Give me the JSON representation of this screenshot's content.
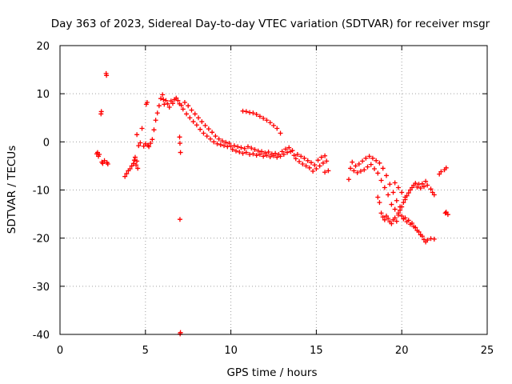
{
  "chart_data": {
    "type": "scatter",
    "title": "Day 363 of 2023, Sidereal Day-to-day VTEC variation (SDTVAR) for receiver msgr",
    "xlabel": "GPS time / hours",
    "ylabel": "SDTVAR / TECUs",
    "xlim": [
      0,
      25
    ],
    "ylim": [
      -40,
      20
    ],
    "xticks": [
      0,
      5,
      10,
      15,
      20,
      25
    ],
    "yticks": [
      -40,
      -30,
      -20,
      -10,
      0,
      10,
      20
    ],
    "grid": true,
    "marker": "+",
    "marker_color": "#ff0000",
    "series": [
      {
        "name": "SDTVAR",
        "points": [
          [
            2.15,
            -2.5
          ],
          [
            2.2,
            -2.2
          ],
          [
            2.25,
            -3.0
          ],
          [
            2.3,
            -2.6
          ],
          [
            2.4,
            5.8
          ],
          [
            2.42,
            6.3
          ],
          [
            2.45,
            -4.2
          ],
          [
            2.5,
            -4.5
          ],
          [
            2.6,
            -3.9
          ],
          [
            2.7,
            14.2
          ],
          [
            2.72,
            13.8
          ],
          [
            2.75,
            -4.3
          ],
          [
            2.8,
            -4.6
          ],
          [
            3.8,
            -7.2
          ],
          [
            3.9,
            -6.6
          ],
          [
            4.0,
            -6.0
          ],
          [
            4.1,
            -5.6
          ],
          [
            4.2,
            -5.0
          ],
          [
            4.3,
            -4.5
          ],
          [
            4.35,
            -3.8
          ],
          [
            4.4,
            -3.2
          ],
          [
            4.45,
            -4.8
          ],
          [
            4.5,
            -4.0
          ],
          [
            4.55,
            -5.5
          ],
          [
            4.5,
            1.5
          ],
          [
            4.6,
            -0.8
          ],
          [
            4.7,
            -0.2
          ],
          [
            4.8,
            2.8
          ],
          [
            4.9,
            -0.9
          ],
          [
            5.0,
            -0.4
          ],
          [
            5.05,
            7.8
          ],
          [
            5.1,
            8.2
          ],
          [
            5.15,
            -0.7
          ],
          [
            5.2,
            -1.0
          ],
          [
            5.3,
            -0.3
          ],
          [
            5.4,
            0.5
          ],
          [
            5.5,
            2.5
          ],
          [
            5.6,
            4.5
          ],
          [
            5.7,
            6.0
          ],
          [
            5.8,
            7.5
          ],
          [
            5.9,
            9.0
          ],
          [
            6.0,
            9.8
          ],
          [
            6.05,
            8.8
          ],
          [
            6.1,
            7.8
          ],
          [
            6.2,
            8.6
          ],
          [
            6.3,
            7.9
          ],
          [
            6.4,
            7.2
          ],
          [
            6.5,
            8.5
          ],
          [
            6.6,
            8.0
          ],
          [
            6.7,
            8.8
          ],
          [
            6.8,
            9.1
          ],
          [
            6.9,
            8.6
          ],
          [
            7.0,
            7.9
          ],
          [
            7.0,
            1.0
          ],
          [
            7.02,
            -0.3
          ],
          [
            7.05,
            -2.2
          ],
          [
            7.02,
            -16.1
          ],
          [
            7.05,
            -39.6
          ],
          [
            7.03,
            -39.9
          ],
          [
            7.1,
            7.6
          ],
          [
            7.2,
            6.8
          ],
          [
            7.3,
            8.2
          ],
          [
            7.4,
            5.8
          ],
          [
            7.5,
            7.5
          ],
          [
            7.6,
            5.0
          ],
          [
            7.7,
            6.6
          ],
          [
            7.8,
            4.2
          ],
          [
            7.9,
            5.8
          ],
          [
            8.0,
            3.5
          ],
          [
            8.1,
            5.0
          ],
          [
            8.2,
            2.6
          ],
          [
            8.3,
            4.2
          ],
          [
            8.4,
            1.8
          ],
          [
            8.5,
            3.4
          ],
          [
            8.6,
            1.2
          ],
          [
            8.7,
            2.7
          ],
          [
            8.8,
            0.6
          ],
          [
            8.9,
            2.0
          ],
          [
            9.0,
            0.0
          ],
          [
            9.1,
            1.2
          ],
          [
            9.2,
            -0.4
          ],
          [
            9.3,
            0.6
          ],
          [
            9.4,
            -0.6
          ],
          [
            9.5,
            0.2
          ],
          [
            9.6,
            -0.8
          ],
          [
            9.7,
            -0.1
          ],
          [
            9.8,
            -1.0
          ],
          [
            9.9,
            -0.3
          ],
          [
            10.0,
            -0.9
          ],
          [
            10.1,
            -1.6
          ],
          [
            10.2,
            -0.8
          ],
          [
            10.3,
            -1.9
          ],
          [
            10.4,
            -1.0
          ],
          [
            10.5,
            -2.1
          ],
          [
            10.6,
            -1.2
          ],
          [
            10.7,
            -2.4
          ],
          [
            10.8,
            -1.4
          ],
          [
            10.9,
            -2.2
          ],
          [
            11.0,
            -1.0
          ],
          [
            11.1,
            -2.6
          ],
          [
            11.2,
            -1.3
          ],
          [
            11.3,
            -2.5
          ],
          [
            11.4,
            -1.6
          ],
          [
            11.5,
            -2.8
          ],
          [
            11.6,
            -1.9
          ],
          [
            11.7,
            -2.6
          ],
          [
            11.8,
            -2.0
          ],
          [
            11.9,
            -3.0
          ],
          [
            12.0,
            -2.3
          ],
          [
            12.1,
            -2.8
          ],
          [
            12.2,
            -2.1
          ],
          [
            12.3,
            -3.1
          ],
          [
            12.4,
            -2.5
          ],
          [
            12.5,
            -2.9
          ],
          [
            12.6,
            -2.4
          ],
          [
            12.7,
            -3.2
          ],
          [
            12.8,
            -2.6
          ],
          [
            12.9,
            -3.0
          ],
          [
            13.0,
            -2.0
          ],
          [
            13.1,
            -2.6
          ],
          [
            13.2,
            -1.5
          ],
          [
            13.3,
            -2.2
          ],
          [
            13.4,
            -1.2
          ],
          [
            13.5,
            -2.0
          ],
          [
            10.7,
            6.4
          ],
          [
            10.9,
            6.3
          ],
          [
            11.1,
            6.1
          ],
          [
            11.3,
            6.0
          ],
          [
            11.5,
            5.7
          ],
          [
            11.7,
            5.3
          ],
          [
            11.9,
            4.9
          ],
          [
            12.1,
            4.5
          ],
          [
            12.3,
            4.0
          ],
          [
            12.5,
            3.4
          ],
          [
            12.7,
            2.8
          ],
          [
            12.9,
            1.8
          ],
          [
            13.6,
            -1.8
          ],
          [
            13.7,
            -2.8
          ],
          [
            13.8,
            -3.5
          ],
          [
            13.9,
            -2.6
          ],
          [
            14.0,
            -4.1
          ],
          [
            14.1,
            -3.0
          ],
          [
            14.2,
            -4.6
          ],
          [
            14.3,
            -3.4
          ],
          [
            14.4,
            -5.0
          ],
          [
            14.5,
            -3.9
          ],
          [
            14.6,
            -5.4
          ],
          [
            14.7,
            -4.3
          ],
          [
            14.8,
            -6.1
          ],
          [
            14.9,
            -4.8
          ],
          [
            15.0,
            -5.6
          ],
          [
            15.1,
            -3.8
          ],
          [
            15.2,
            -5.0
          ],
          [
            15.3,
            -3.2
          ],
          [
            15.4,
            -4.4
          ],
          [
            15.5,
            -2.9
          ],
          [
            15.6,
            -4.0
          ],
          [
            15.7,
            -6.0
          ],
          [
            15.5,
            -6.3
          ],
          [
            16.9,
            -7.8
          ],
          [
            17.0,
            -5.5
          ],
          [
            17.1,
            -4.2
          ],
          [
            17.2,
            -6.0
          ],
          [
            17.3,
            -5.0
          ],
          [
            17.4,
            -6.4
          ],
          [
            17.5,
            -4.6
          ],
          [
            17.6,
            -6.1
          ],
          [
            17.7,
            -4.0
          ],
          [
            17.8,
            -5.8
          ],
          [
            17.9,
            -3.4
          ],
          [
            18.0,
            -5.2
          ],
          [
            18.1,
            -3.0
          ],
          [
            18.2,
            -4.7
          ],
          [
            18.3,
            -3.4
          ],
          [
            18.4,
            -5.6
          ],
          [
            18.5,
            -3.9
          ],
          [
            18.6,
            -6.5
          ],
          [
            18.7,
            -4.4
          ],
          [
            18.8,
            -8.0
          ],
          [
            18.9,
            -5.5
          ],
          [
            19.0,
            -9.5
          ],
          [
            19.1,
            -7.0
          ],
          [
            19.2,
            -11.0
          ],
          [
            19.3,
            -8.8
          ],
          [
            19.4,
            -13.0
          ],
          [
            19.5,
            -10.5
          ],
          [
            19.6,
            -14.0
          ],
          [
            19.7,
            -12.2
          ],
          [
            19.8,
            -14.8
          ],
          [
            19.9,
            -13.5
          ],
          [
            20.0,
            -15.4
          ],
          [
            20.1,
            -16.0
          ],
          [
            20.2,
            -15.8
          ],
          [
            20.3,
            -16.6
          ],
          [
            20.4,
            -16.3
          ],
          [
            20.5,
            -17.1
          ],
          [
            20.6,
            -16.9
          ],
          [
            20.7,
            -17.6
          ],
          [
            20.8,
            -17.8
          ],
          [
            20.9,
            -18.4
          ],
          [
            21.0,
            -18.7
          ],
          [
            21.1,
            -19.3
          ],
          [
            21.2,
            -19.6
          ],
          [
            21.3,
            -20.3
          ],
          [
            21.4,
            -20.8
          ],
          [
            21.5,
            -20.4
          ],
          [
            21.7,
            -20.1
          ],
          [
            21.9,
            -20.2
          ],
          [
            18.6,
            -11.5
          ],
          [
            18.7,
            -12.6
          ],
          [
            18.8,
            -14.8
          ],
          [
            18.9,
            -15.6
          ],
          [
            19.0,
            -16.2
          ],
          [
            19.1,
            -15.4
          ],
          [
            19.2,
            -15.9
          ],
          [
            19.3,
            -16.6
          ],
          [
            19.4,
            -17.0
          ],
          [
            19.5,
            -16.2
          ],
          [
            19.6,
            -15.8
          ],
          [
            19.7,
            -16.5
          ],
          [
            19.8,
            -15.2
          ],
          [
            19.9,
            -14.2
          ],
          [
            20.0,
            -13.5
          ],
          [
            20.1,
            -12.6
          ],
          [
            20.2,
            -12.0
          ],
          [
            20.3,
            -11.2
          ],
          [
            20.4,
            -10.6
          ],
          [
            20.5,
            -10.0
          ],
          [
            20.6,
            -9.5
          ],
          [
            20.7,
            -9.0
          ],
          [
            20.8,
            -8.6
          ],
          [
            20.9,
            -9.4
          ],
          [
            21.0,
            -8.8
          ],
          [
            21.1,
            -9.6
          ],
          [
            21.2,
            -8.7
          ],
          [
            21.3,
            -9.3
          ],
          [
            21.4,
            -8.2
          ],
          [
            21.5,
            -9.0
          ],
          [
            21.7,
            -9.8
          ],
          [
            21.8,
            -10.5
          ],
          [
            21.9,
            -11.0
          ],
          [
            19.6,
            -8.5
          ],
          [
            19.8,
            -9.5
          ],
          [
            20.0,
            -10.5
          ],
          [
            20.2,
            -11.5
          ],
          [
            22.2,
            -6.7
          ],
          [
            22.3,
            -6.2
          ],
          [
            22.5,
            -5.8
          ],
          [
            22.6,
            -5.4
          ],
          [
            22.6,
            -14.6
          ],
          [
            22.7,
            -15.1
          ],
          [
            22.55,
            -14.8
          ]
        ]
      }
    ]
  }
}
